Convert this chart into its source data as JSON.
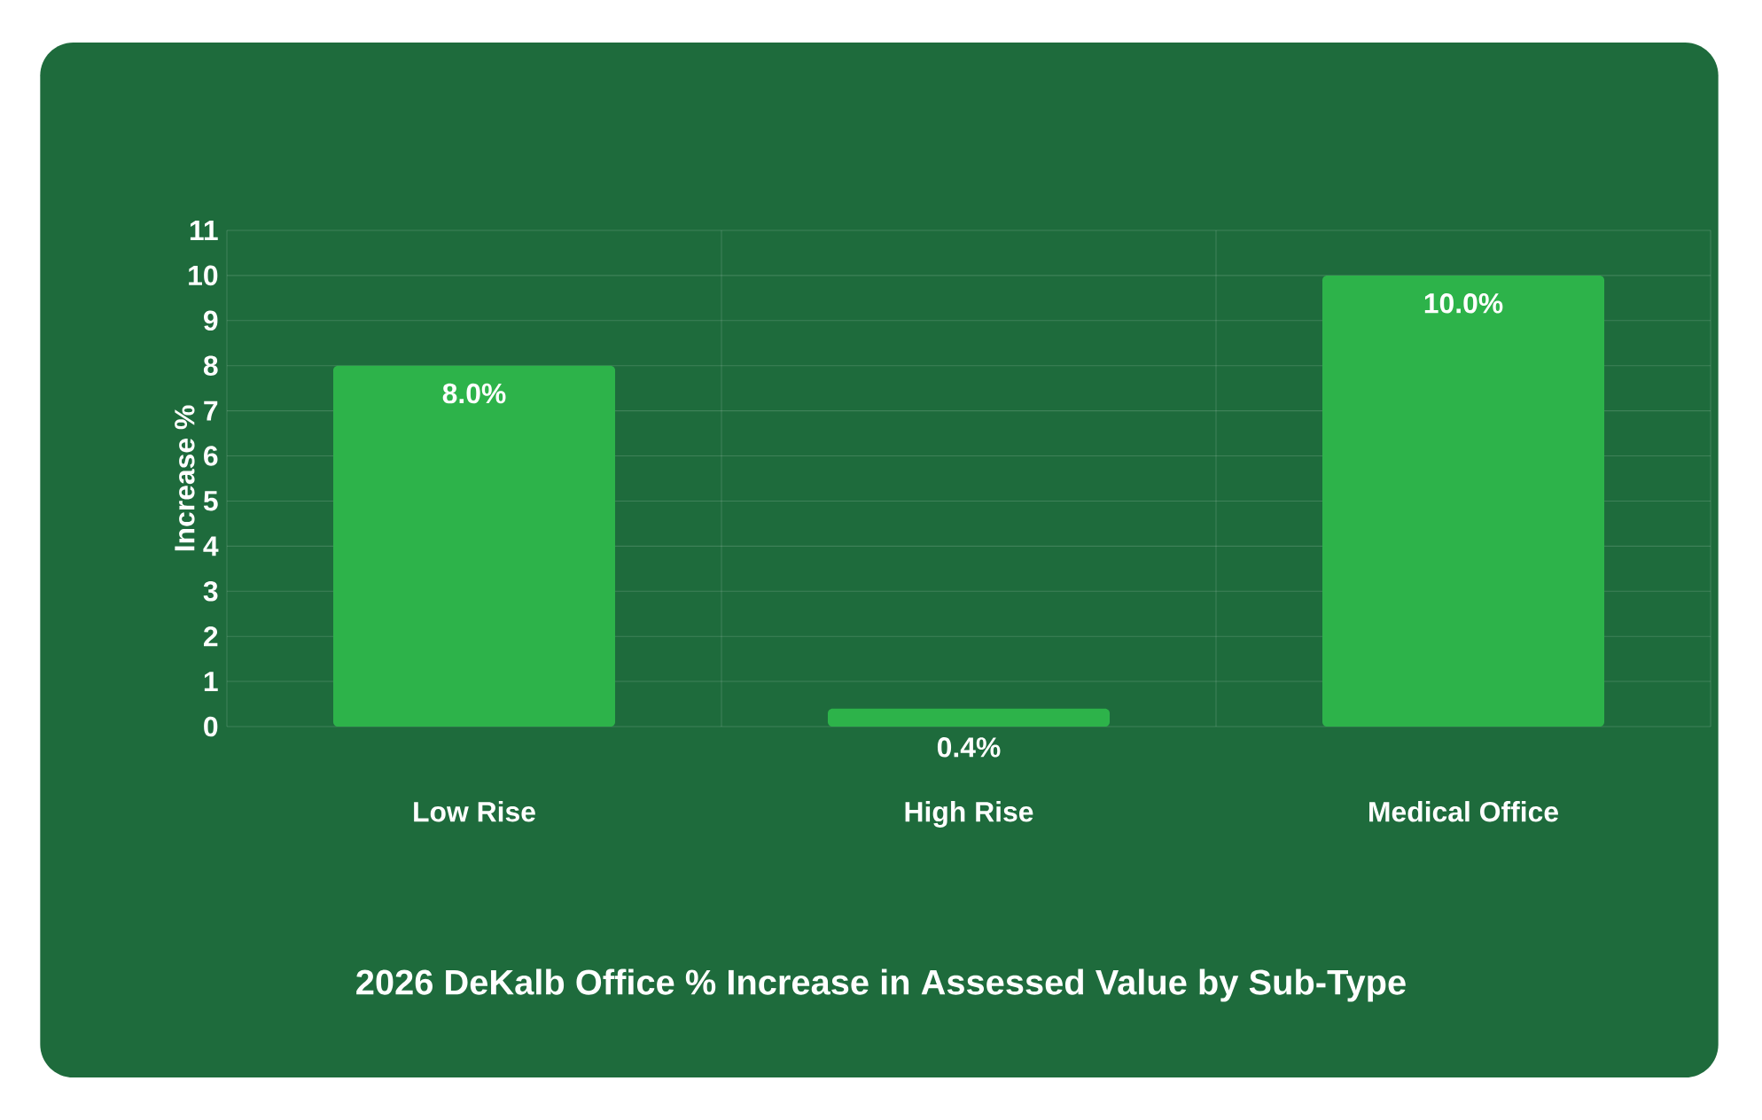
{
  "chart_data": {
    "type": "bar",
    "title": "2026 DeKalb Office % Increase in Assessed Value by Sub-Type",
    "ylabel": "Increase %",
    "categories": [
      "Low Rise",
      "High Rise",
      "Medical Office"
    ],
    "values": [
      8.0,
      0.4,
      10.0
    ],
    "value_labels": [
      "8.0%",
      "0.4%",
      "10.0%"
    ],
    "color": "#2db34a",
    "ylim": [
      0,
      11
    ],
    "yticks": [
      0,
      1,
      2,
      3,
      4,
      5,
      6,
      7,
      8,
      9,
      10,
      11
    ],
    "grid": true
  }
}
